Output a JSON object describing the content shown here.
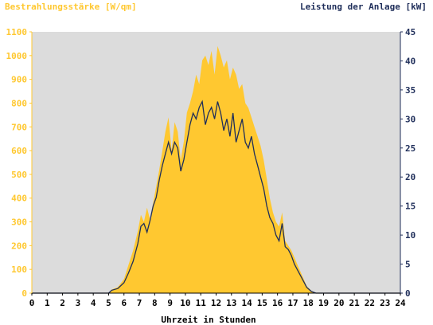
{
  "chart_data": {
    "type": "area",
    "title_left": "Bestrahlungsstärke [W/qm]",
    "title_right": "Leistung der Anlage [kW]",
    "xlabel": "Uhrzeit in Stunden",
    "xlim": [
      0,
      24
    ],
    "x_ticks": [
      "0",
      "1",
      "2",
      "3",
      "4",
      "5",
      "6",
      "7",
      "8",
      "9",
      "10",
      "11",
      "12",
      "13",
      "14",
      "15",
      "16",
      "17",
      "18",
      "19",
      "20",
      "21",
      "22",
      "23",
      "24"
    ],
    "ylim_left": [
      0,
      1100
    ],
    "y_ticks_left": [
      "0",
      "100",
      "200",
      "300",
      "400",
      "500",
      "600",
      "700",
      "800",
      "900",
      "1000",
      "1100"
    ],
    "ylim_right": [
      0,
      45
    ],
    "y_ticks_right": [
      "0",
      "5",
      "10",
      "15",
      "20",
      "25",
      "30",
      "35",
      "40",
      "45"
    ],
    "grid": false,
    "colors": {
      "plot_background": "#dcdcdc",
      "irradiance_fill": "#ffc830",
      "left_axis_text": "#ffc830",
      "power_line": "#1f2e5a",
      "right_axis_text": "#1f2e5a"
    },
    "series": [
      {
        "name": "Bestrahlungsstärke [W/qm]",
        "axis": "left",
        "x": [
          0,
          5.0,
          5.2,
          5.6,
          6.0,
          6.3,
          6.6,
          6.9,
          7.1,
          7.3,
          7.5,
          7.7,
          7.9,
          8.1,
          8.3,
          8.5,
          8.7,
          8.9,
          9.1,
          9.3,
          9.5,
          9.7,
          9.9,
          10.1,
          10.3,
          10.5,
          10.7,
          10.9,
          11.1,
          11.3,
          11.5,
          11.7,
          11.9,
          12.1,
          12.3,
          12.5,
          12.7,
          12.9,
          13.1,
          13.3,
          13.5,
          13.7,
          13.9,
          14.1,
          14.3,
          14.5,
          14.7,
          14.9,
          15.1,
          15.3,
          15.5,
          15.7,
          15.9,
          16.1,
          16.3,
          16.5,
          16.7,
          16.9,
          17.1,
          17.3,
          17.5,
          17.7,
          17.9,
          18.2,
          18.5,
          18.8,
          19.1,
          19.4,
          19.7,
          20.0,
          24
        ],
        "values": [
          0,
          0,
          15,
          25,
          60,
          120,
          180,
          260,
          330,
          300,
          360,
          310,
          380,
          450,
          520,
          600,
          680,
          740,
          600,
          720,
          680,
          560,
          640,
          760,
          800,
          850,
          920,
          880,
          980,
          1000,
          960,
          1020,
          920,
          1040,
          1000,
          950,
          980,
          900,
          950,
          920,
          860,
          880,
          800,
          780,
          740,
          700,
          660,
          620,
          560,
          480,
          400,
          340,
          300,
          280,
          340,
          220,
          200,
          180,
          150,
          120,
          90,
          60,
          30,
          10,
          0,
          0,
          0,
          0,
          0,
          0,
          0
        ]
      },
      {
        "name": "Leistung der Anlage [kW]",
        "axis": "right",
        "x": [
          0,
          5.0,
          5.2,
          5.6,
          6.0,
          6.3,
          6.6,
          6.9,
          7.1,
          7.3,
          7.5,
          7.7,
          7.9,
          8.1,
          8.3,
          8.5,
          8.7,
          8.9,
          9.1,
          9.3,
          9.5,
          9.7,
          9.9,
          10.1,
          10.3,
          10.5,
          10.7,
          10.9,
          11.1,
          11.3,
          11.5,
          11.7,
          11.9,
          12.1,
          12.3,
          12.5,
          12.7,
          12.9,
          13.1,
          13.3,
          13.5,
          13.7,
          13.9,
          14.1,
          14.3,
          14.5,
          14.7,
          14.9,
          15.1,
          15.3,
          15.5,
          15.7,
          15.9,
          16.1,
          16.3,
          16.5,
          16.7,
          16.9,
          17.1,
          17.3,
          17.5,
          17.7,
          17.9,
          18.2,
          18.5,
          18.8,
          19.1,
          19.4,
          19.7,
          20.0,
          24
        ],
        "values": [
          0,
          0,
          0.5,
          0.8,
          1.8,
          3.5,
          5.5,
          8.5,
          11.5,
          12,
          10.5,
          12.5,
          15,
          16.5,
          19.5,
          22,
          24,
          26,
          24,
          26,
          25,
          21,
          23,
          26,
          29,
          31,
          30,
          32,
          33,
          29,
          31,
          32,
          30,
          33,
          31,
          28,
          30,
          27,
          31,
          26,
          28,
          30,
          26,
          25,
          27,
          24,
          22,
          20,
          18,
          15,
          13,
          12,
          10,
          9,
          12,
          8,
          7.5,
          6.5,
          5,
          4,
          3,
          2,
          1,
          0.3,
          0,
          0,
          0,
          0,
          0,
          0,
          0
        ]
      }
    ]
  }
}
